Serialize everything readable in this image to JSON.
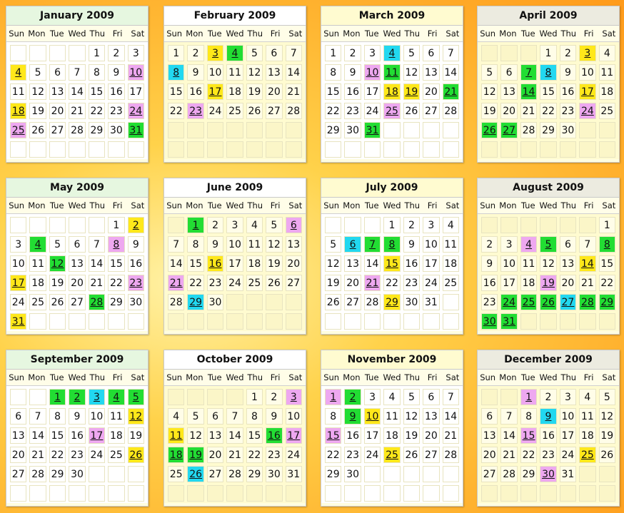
{
  "weekdays": [
    "Sun",
    "Mon",
    "Tue",
    "Wed",
    "Thu",
    "Fri",
    "Sat"
  ],
  "colors": {
    "green": "#22dd33",
    "yellow": "#ffe81a",
    "pink": "#eea8f0",
    "cyan": "#22d8f0",
    "title_white": "#ffffff",
    "title_green": "#e6f7e0",
    "title_yellow": "#fffbd0",
    "title_gray": "#ecebe0"
  },
  "months": [
    {
      "title": "January 2009",
      "offset": 4,
      "days": 31,
      "title_style": "green",
      "body": "white",
      "marks": {
        "4": "yellow",
        "10": "pink",
        "18": "yellow",
        "24": "pink",
        "25": "pink",
        "31": "green"
      }
    },
    {
      "title": "February 2009",
      "offset": 0,
      "days": 28,
      "title_style": "white",
      "body": "yellow",
      "marks": {
        "3": "yellow",
        "4": "green",
        "8": "cyan",
        "17": "yellow",
        "23": "pink"
      }
    },
    {
      "title": "March 2009",
      "offset": 0,
      "days": 31,
      "title_style": "yellow",
      "body": "white",
      "marks": {
        "4": "cyan",
        "10": "pink",
        "11": "green",
        "18": "yellow",
        "19": "yellow",
        "21": "green",
        "25": "pink",
        "31": "green"
      }
    },
    {
      "title": "April 2009",
      "offset": 3,
      "days": 30,
      "title_style": "gray",
      "body": "yellow",
      "marks": {
        "3": "yellow",
        "7": "green",
        "8": "cyan",
        "14": "green",
        "17": "yellow",
        "24": "pink",
        "26": "green",
        "27": "green"
      }
    },
    {
      "title": "May 2009",
      "offset": 5,
      "days": 31,
      "title_style": "green",
      "body": "white",
      "marks": {
        "2": "yellow",
        "4": "green",
        "8": "pink",
        "12": "green",
        "17": "yellow",
        "23": "pink",
        "28": "green",
        "31": "yellow"
      }
    },
    {
      "title": "June 2009",
      "offset": 1,
      "days": 30,
      "title_style": "white",
      "body": "yellow",
      "marks": {
        "1": "green",
        "6": "pink",
        "16": "yellow",
        "21": "pink",
        "29": "cyan"
      }
    },
    {
      "title": "July 2009",
      "offset": 3,
      "days": 31,
      "title_style": "yellow",
      "body": "white",
      "marks": {
        "6": "cyan",
        "7": "green",
        "8": "green",
        "15": "yellow",
        "21": "pink",
        "29": "yellow"
      }
    },
    {
      "title": "August 2009",
      "offset": 6,
      "days": 31,
      "title_style": "gray",
      "body": "yellow",
      "marks": {
        "4": "pink",
        "5": "green",
        "8": "green",
        "14": "yellow",
        "19": "pink",
        "24": "green",
        "25": "green",
        "26": "green",
        "27": "cyan",
        "28": "green",
        "29": "green",
        "30": "green",
        "31": "green"
      }
    },
    {
      "title": "September 2009",
      "offset": 2,
      "days": 30,
      "title_style": "green",
      "body": "white",
      "marks": {
        "1": "green",
        "2": "green",
        "3": "cyan",
        "4": "green",
        "5": "green",
        "12": "yellow",
        "17": "pink",
        "26": "yellow"
      }
    },
    {
      "title": "October 2009",
      "offset": 4,
      "days": 31,
      "title_style": "white",
      "body": "yellow",
      "marks": {
        "3": "pink",
        "11": "yellow",
        "16": "green",
        "17": "pink",
        "18": "green",
        "19": "green",
        "26": "cyan"
      }
    },
    {
      "title": "November 2009",
      "offset": 0,
      "days": 30,
      "title_style": "yellow",
      "body": "white",
      "marks": {
        "1": "pink",
        "2": "green",
        "9": "green",
        "10": "yellow",
        "15": "pink",
        "25": "yellow"
      }
    },
    {
      "title": "December 2009",
      "offset": 2,
      "days": 31,
      "title_style": "gray",
      "body": "yellow",
      "marks": {
        "1": "pink",
        "9": "cyan",
        "15": "pink",
        "25": "yellow",
        "30": "pink"
      }
    }
  ]
}
